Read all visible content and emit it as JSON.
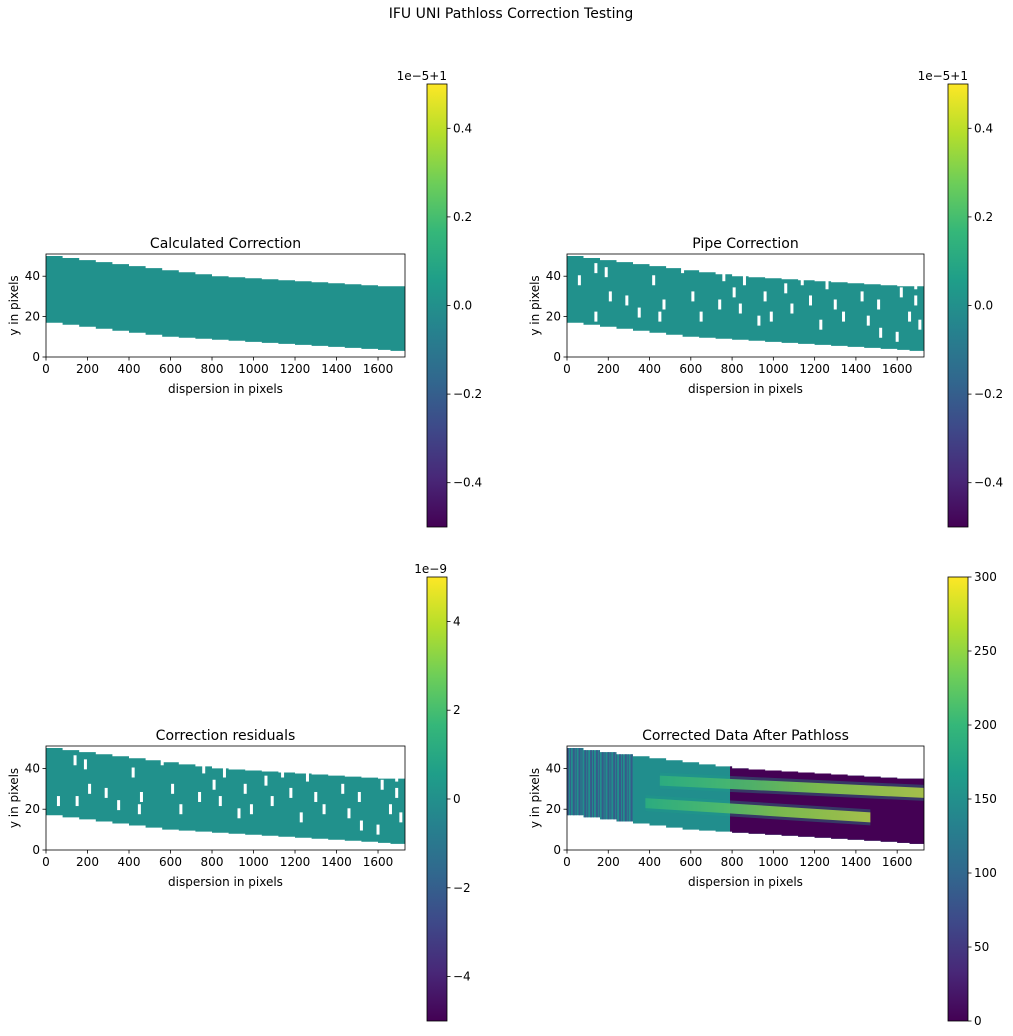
{
  "figure": {
    "suptitle": "IFU UNI Pathloss Correction Testing"
  },
  "colormap": {
    "name": "viridis",
    "stops": [
      "#440154",
      "#482878",
      "#3e4989",
      "#31688e",
      "#26828e",
      "#1f9e89",
      "#35b779",
      "#6ece58",
      "#b5de2b",
      "#fde725"
    ]
  },
  "chart_data": [
    {
      "type": "heatmap",
      "title": "Calculated Correction",
      "xlabel": "dispersion in pixels",
      "ylabel": "y in pixels",
      "xlim": [
        0,
        1730
      ],
      "ylim": [
        0,
        51
      ],
      "xticks": [
        "0",
        "200",
        "400",
        "600",
        "800",
        "1000",
        "1200",
        "1400",
        "1600"
      ],
      "yticks": [
        "0",
        "20",
        "40"
      ],
      "fill_color": "#21918c",
      "strip": {
        "x": [
          0,
          80,
          160,
          240,
          320,
          400,
          480,
          560,
          640,
          720,
          800,
          880,
          960,
          1040,
          1120,
          1200,
          1280,
          1360,
          1440,
          1520,
          1600,
          1660,
          1730
        ],
        "top": [
          50,
          49,
          48,
          47,
          46,
          45,
          44,
          43,
          42,
          41,
          40,
          39.5,
          39,
          38.5,
          38,
          37.5,
          37,
          36.5,
          36,
          35.5,
          35,
          35,
          35
        ],
        "bottom": [
          17,
          16,
          15,
          14,
          13,
          12,
          11,
          10,
          9.5,
          9,
          8.5,
          8,
          7.5,
          7,
          6.5,
          6,
          5.5,
          5,
          4.5,
          4,
          3.5,
          3,
          3
        ]
      },
      "holes": [],
      "colorbar": {
        "vmin": -0.5,
        "vmax": 0.5,
        "ticks": [
          "−0.4",
          "−0.2",
          "0.0",
          "0.2",
          "0.4"
        ],
        "tick_values": [
          -0.4,
          -0.2,
          0.0,
          0.2,
          0.4
        ],
        "offset_label": "1e−5+1"
      }
    },
    {
      "type": "heatmap",
      "title": "Pipe Correction",
      "xlabel": "dispersion in pixels",
      "ylabel": "y in pixels",
      "xlim": [
        0,
        1730
      ],
      "ylim": [
        0,
        51
      ],
      "xticks": [
        "0",
        "200",
        "400",
        "600",
        "800",
        "1000",
        "1200",
        "1400",
        "1600"
      ],
      "yticks": [
        "0",
        "20",
        "40"
      ],
      "fill_color": "#21918c",
      "strip": {
        "x": [
          0,
          80,
          160,
          240,
          320,
          400,
          480,
          560,
          640,
          720,
          800,
          880,
          960,
          1040,
          1120,
          1200,
          1280,
          1360,
          1440,
          1520,
          1600,
          1660,
          1730
        ],
        "top": [
          50,
          49,
          48,
          47,
          46,
          45,
          44,
          43,
          42,
          41,
          40,
          39.5,
          39,
          38.5,
          38,
          37.5,
          37,
          36.5,
          36,
          35.5,
          35,
          35,
          35
        ],
        "bottom": [
          17,
          16,
          15,
          14,
          13,
          12,
          11,
          10,
          9.5,
          9,
          8.5,
          8,
          7.5,
          7,
          6.5,
          6,
          5.5,
          5,
          4.5,
          4,
          3.5,
          3,
          3
        ]
      },
      "holes": [
        [
          140,
          44
        ],
        [
          190,
          42
        ],
        [
          60,
          38
        ],
        [
          210,
          30
        ],
        [
          290,
          28
        ],
        [
          350,
          22
        ],
        [
          140,
          20
        ],
        [
          470,
          26
        ],
        [
          420,
          38
        ],
        [
          450,
          20
        ],
        [
          560,
          44
        ],
        [
          610,
          30
        ],
        [
          650,
          20
        ],
        [
          690,
          46
        ],
        [
          760,
          40
        ],
        [
          740,
          26
        ],
        [
          810,
          32
        ],
        [
          840,
          24
        ],
        [
          860,
          38
        ],
        [
          900,
          44
        ],
        [
          930,
          18
        ],
        [
          960,
          30
        ],
        [
          990,
          20
        ],
        [
          1040,
          44
        ],
        [
          1060,
          34
        ],
        [
          1090,
          24
        ],
        [
          1140,
          38
        ],
        [
          1180,
          28
        ],
        [
          1210,
          44
        ],
        [
          1230,
          16
        ],
        [
          1260,
          36
        ],
        [
          1300,
          26
        ],
        [
          1340,
          20
        ],
        [
          1370,
          42
        ],
        [
          1430,
          30
        ],
        [
          1460,
          18
        ],
        [
          1510,
          26
        ],
        [
          1570,
          40
        ],
        [
          1620,
          32
        ],
        [
          1660,
          20
        ],
        [
          1690,
          28
        ],
        [
          1710,
          16
        ],
        [
          1690,
          36
        ],
        [
          1600,
          10
        ],
        [
          1520,
          12
        ]
      ],
      "colorbar": {
        "vmin": -0.5,
        "vmax": 0.5,
        "ticks": [
          "−0.4",
          "−0.2",
          "0.0",
          "0.2",
          "0.4"
        ],
        "tick_values": [
          -0.4,
          -0.2,
          0.0,
          0.2,
          0.4
        ],
        "offset_label": "1e−5+1"
      }
    },
    {
      "type": "heatmap",
      "title": "Correction residuals",
      "xlabel": "dispersion in pixels",
      "ylabel": "y in pixels",
      "xlim": [
        0,
        1730
      ],
      "ylim": [
        0,
        51
      ],
      "xticks": [
        "0",
        "200",
        "400",
        "600",
        "800",
        "1000",
        "1200",
        "1400",
        "1600"
      ],
      "yticks": [
        "0",
        "20",
        "40"
      ],
      "fill_color": "#21918c",
      "strip": {
        "x": [
          0,
          80,
          160,
          240,
          320,
          400,
          480,
          560,
          640,
          720,
          800,
          880,
          960,
          1040,
          1120,
          1200,
          1280,
          1360,
          1440,
          1520,
          1600,
          1660,
          1730
        ],
        "top": [
          50,
          49,
          48,
          47,
          46,
          45,
          44,
          43,
          42,
          41,
          40,
          39.5,
          39,
          38.5,
          38,
          37.5,
          37,
          36.5,
          36,
          35.5,
          35,
          35,
          35
        ],
        "bottom": [
          17,
          16,
          15,
          14,
          13,
          12,
          11,
          10,
          9.5,
          9,
          8.5,
          8,
          7.5,
          7,
          6.5,
          6,
          5.5,
          5,
          4.5,
          4,
          3.5,
          3,
          3
        ]
      },
      "holes": [
        [
          140,
          44
        ],
        [
          190,
          42
        ],
        [
          60,
          24
        ],
        [
          150,
          24
        ],
        [
          210,
          30
        ],
        [
          290,
          28
        ],
        [
          350,
          22
        ],
        [
          460,
          26
        ],
        [
          420,
          38
        ],
        [
          450,
          20
        ],
        [
          560,
          44
        ],
        [
          610,
          30
        ],
        [
          650,
          20
        ],
        [
          690,
          46
        ],
        [
          760,
          40
        ],
        [
          740,
          26
        ],
        [
          810,
          32
        ],
        [
          840,
          24
        ],
        [
          860,
          38
        ],
        [
          900,
          44
        ],
        [
          930,
          18
        ],
        [
          960,
          30
        ],
        [
          990,
          20
        ],
        [
          1040,
          44
        ],
        [
          1060,
          34
        ],
        [
          1090,
          24
        ],
        [
          1140,
          38
        ],
        [
          1180,
          28
        ],
        [
          1210,
          44
        ],
        [
          1230,
          16
        ],
        [
          1260,
          36
        ],
        [
          1300,
          26
        ],
        [
          1340,
          20
        ],
        [
          1370,
          42
        ],
        [
          1430,
          30
        ],
        [
          1460,
          18
        ],
        [
          1510,
          26
        ],
        [
          1570,
          40
        ],
        [
          1620,
          32
        ],
        [
          1660,
          20
        ],
        [
          1690,
          28
        ],
        [
          1710,
          16
        ],
        [
          1690,
          36
        ],
        [
          1600,
          10
        ],
        [
          1520,
          12
        ]
      ],
      "colorbar": {
        "vmin": -5,
        "vmax": 5,
        "ticks": [
          "−4",
          "−2",
          "0",
          "2",
          "4"
        ],
        "tick_values": [
          -4,
          -2,
          0,
          2,
          4
        ],
        "offset_label": "1e−9"
      }
    },
    {
      "type": "heatmap",
      "title": "Corrected Data After Pathloss",
      "xlabel": "dispersion in pixels",
      "ylabel": "y in pixels",
      "xlim": [
        0,
        1730
      ],
      "ylim": [
        0,
        51
      ],
      "xticks": [
        "0",
        "200",
        "400",
        "600",
        "800",
        "1000",
        "1200",
        "1400",
        "1600"
      ],
      "yticks": [
        "0",
        "20",
        "40"
      ],
      "fill_color": "#218e8d",
      "strip": {
        "x": [
          0,
          80,
          160,
          240,
          320,
          400,
          480,
          560,
          640,
          720,
          800,
          880,
          960,
          1040,
          1120,
          1200,
          1280,
          1360,
          1440,
          1520,
          1600,
          1660,
          1730
        ],
        "top": [
          50,
          49,
          48,
          47,
          46,
          45,
          44,
          43,
          42,
          41,
          40,
          39.5,
          39,
          38.5,
          38,
          37.5,
          37,
          36.5,
          36,
          35.5,
          35,
          35,
          35
        ],
        "bottom": [
          17,
          16,
          15,
          14,
          13,
          12,
          11,
          10,
          9.5,
          9,
          8.5,
          8,
          7.5,
          7,
          6.5,
          6,
          5.5,
          5,
          4.5,
          4,
          3.5,
          3,
          3
        ]
      },
      "dark_region": {
        "x_from": 790,
        "x_to": 1730,
        "color": "#440154"
      },
      "stripes": [
        {
          "x_from": 0,
          "x_to": 320,
          "value": 90
        }
      ],
      "traces": [
        {
          "x_from": 450,
          "x_to": 1730,
          "y_from": 34,
          "y_to": 28,
          "value": 300
        },
        {
          "x_from": 380,
          "x_to": 1470,
          "y_from": 23,
          "y_to": 16,
          "value": 260
        }
      ],
      "colorbar": {
        "vmin": 0,
        "vmax": 300,
        "ticks": [
          "0",
          "50",
          "100",
          "150",
          "200",
          "250",
          "300"
        ],
        "tick_values": [
          0,
          50,
          100,
          150,
          200,
          250,
          300
        ],
        "offset_label": ""
      }
    }
  ]
}
